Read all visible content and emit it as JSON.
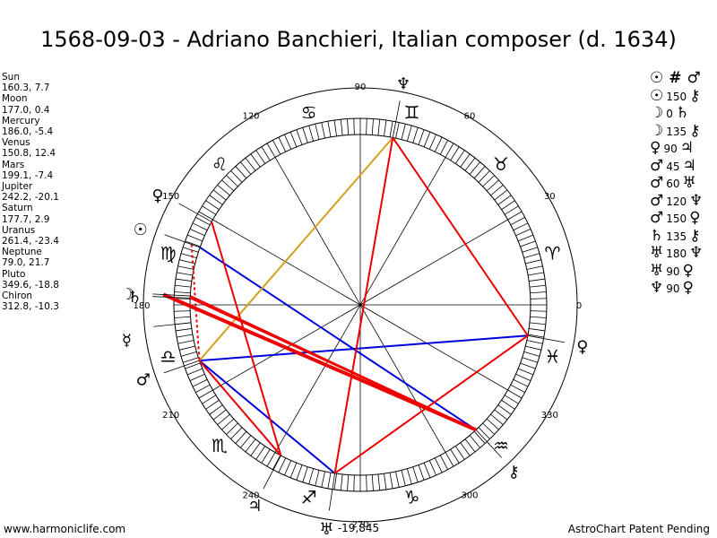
{
  "title": "1568-09-03 - Adriano Banchieri, Italian composer (d. 1634)",
  "planet_positions": [
    {
      "name": "Sun",
      "value": "160.3, 7.7"
    },
    {
      "name": "Moon",
      "value": "177.0, 0.4"
    },
    {
      "name": "Mercury",
      "value": "186.0, -5.4"
    },
    {
      "name": "Venus",
      "value": "150.8, 12.4"
    },
    {
      "name": "Mars",
      "value": "199.1, -7.4"
    },
    {
      "name": "Jupiter",
      "value": "242.2, -20.1"
    },
    {
      "name": "Saturn",
      "value": "177.7, 2.9"
    },
    {
      "name": "Uranus",
      "value": "261.4, -23.4"
    },
    {
      "name": "Neptune",
      "value": "79.0, 21.7"
    },
    {
      "name": "Pluto",
      "value": "349.6, -18.8"
    },
    {
      "name": "Chiron",
      "value": "312.8, -10.3"
    }
  ],
  "aspects_list": [
    {
      "p1": "☉",
      "n": "",
      "p2": "♂",
      "p1_icon": "sun-icon",
      "p2_icon": "mars-icon",
      "parallel": true
    },
    {
      "p1": "☉",
      "n": "150",
      "p2": "⚷",
      "p1_icon": "sun-icon",
      "p2_icon": "chiron-icon"
    },
    {
      "p1": "☽",
      "n": "0",
      "p2": "♄",
      "p1_icon": "moon-icon",
      "p2_icon": "saturn-icon"
    },
    {
      "p1": "☽",
      "n": "135",
      "p2": "⚷",
      "p1_icon": "moon-icon",
      "p2_icon": "chiron-icon"
    },
    {
      "p1": "♀",
      "n": "90",
      "p2": "♃",
      "p1_icon": "venus-icon",
      "p2_icon": "jupiter-icon"
    },
    {
      "p1": "♂",
      "n": "45",
      "p2": "♃",
      "p1_icon": "mars-icon",
      "p2_icon": "jupiter-icon"
    },
    {
      "p1": "♂",
      "n": "60",
      "p2": "♅",
      "p1_icon": "mars-icon",
      "p2_icon": "uranus-icon"
    },
    {
      "p1": "♂",
      "n": "120",
      "p2": "♆",
      "p1_icon": "mars-icon",
      "p2_icon": "neptune-icon"
    },
    {
      "p1": "♂",
      "n": "150",
      "p2": "♀",
      "p1_icon": "mars-icon",
      "p2_icon": "pluto-icon"
    },
    {
      "p1": "♄",
      "n": "135",
      "p2": "⚷",
      "p1_icon": "saturn-icon",
      "p2_icon": "chiron-icon"
    },
    {
      "p1": "♅",
      "n": "180",
      "p2": "♆",
      "p1_icon": "uranus-icon",
      "p2_icon": "neptune-icon"
    },
    {
      "p1": "♅",
      "n": "90",
      "p2": "♀",
      "p1_icon": "uranus-icon",
      "p2_icon": "pluto-icon"
    },
    {
      "p1": "♆",
      "n": "90",
      "p2": "♀",
      "p1_icon": "neptune-icon",
      "p2_icon": "pluto-icon"
    }
  ],
  "footer_left": "www.harmoniclife.com",
  "footer_right": "AstroChart Patent Pending",
  "chart_data": {
    "type": "astrological wheel",
    "degree_labels": [
      "0",
      "30",
      "60",
      "90",
      "120",
      "150",
      "180",
      "210",
      "240",
      "270",
      "300",
      "330"
    ],
    "year_label": "-19,845",
    "signs": [
      {
        "sign": "Aries",
        "glyph": "♈",
        "deg": 15
      },
      {
        "sign": "Taurus",
        "glyph": "♉",
        "deg": 45
      },
      {
        "sign": "Gemini",
        "glyph": "♊",
        "deg": 75
      },
      {
        "sign": "Cancer",
        "glyph": "♋",
        "deg": 105
      },
      {
        "sign": "Leo",
        "glyph": "♌",
        "deg": 135
      },
      {
        "sign": "Virgo",
        "glyph": "♍",
        "deg": 165
      },
      {
        "sign": "Libra",
        "glyph": "♎",
        "deg": 195
      },
      {
        "sign": "Scorpio",
        "glyph": "♏",
        "deg": 225
      },
      {
        "sign": "Sagittarius",
        "glyph": "♐",
        "deg": 255
      },
      {
        "sign": "Capricorn",
        "glyph": "♑",
        "deg": 285
      },
      {
        "sign": "Aquarius",
        "glyph": "♒",
        "deg": 315
      },
      {
        "sign": "Pisces",
        "glyph": "♓",
        "deg": 345
      }
    ],
    "planets": [
      {
        "name": "Sun",
        "glyph": "☉",
        "lon": 160.3
      },
      {
        "name": "Moon",
        "glyph": "☽",
        "lon": 177.0
      },
      {
        "name": "Mercury",
        "glyph": "☿",
        "lon": 186.0
      },
      {
        "name": "Venus",
        "glyph": "♀",
        "lon": 150.8
      },
      {
        "name": "Mars",
        "glyph": "♂",
        "lon": 199.1
      },
      {
        "name": "Jupiter",
        "glyph": "♃",
        "lon": 242.2
      },
      {
        "name": "Saturn",
        "glyph": "♄",
        "lon": 177.7
      },
      {
        "name": "Uranus",
        "glyph": "♅",
        "lon": 261.4
      },
      {
        "name": "Neptune",
        "glyph": "♆",
        "lon": 79.0
      },
      {
        "name": "Pluto",
        "glyph": "♀",
        "lon": 349.6
      },
      {
        "name": "Chiron",
        "glyph": "⚷",
        "lon": 312.8
      }
    ],
    "aspect_lines": [
      {
        "a": "Sun",
        "b": "Chiron",
        "color": "#0000dd"
      },
      {
        "a": "Mars",
        "b": "Pluto",
        "color": "#0000dd"
      },
      {
        "a": "Mars",
        "b": "Uranus",
        "color": "#0000dd"
      },
      {
        "a": "Mars",
        "b": "Neptune",
        "color": "#d4a020"
      },
      {
        "a": "Venus",
        "b": "Jupiter",
        "color": "#ee0000"
      },
      {
        "a": "Moon",
        "b": "Chiron",
        "color": "#ee0000"
      },
      {
        "a": "Saturn",
        "b": "Chiron",
        "color": "#ee0000"
      },
      {
        "a": "Mars",
        "b": "Jupiter",
        "color": "#ee0000"
      },
      {
        "a": "Uranus",
        "b": "Neptune",
        "color": "#ee0000"
      },
      {
        "a": "Uranus",
        "b": "Pluto",
        "color": "#ee0000"
      },
      {
        "a": "Neptune",
        "b": "Pluto",
        "color": "#ee0000"
      }
    ],
    "parallel_lines": [
      {
        "a": "Sun",
        "b": "Mars",
        "color": "#ee0000"
      }
    ],
    "colors": {
      "blue": "#0000dd",
      "red": "#ee0000",
      "gold": "#d4a020"
    }
  }
}
